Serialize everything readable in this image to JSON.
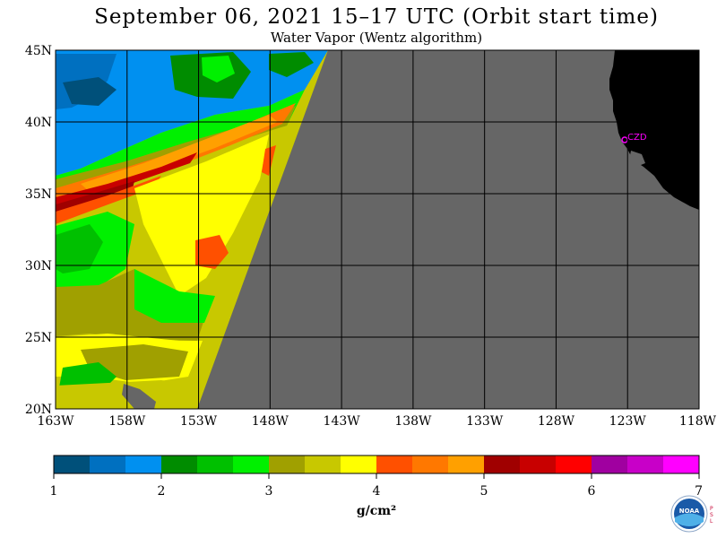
{
  "header": {
    "title": "September 06, 2021  15–17 UTC  (Orbit start time)",
    "subtitle": "Water Vapor (Wentz algorithm)"
  },
  "map": {
    "lat_labels": [
      "45N",
      "40N",
      "35N",
      "30N",
      "25N",
      "20N"
    ],
    "lon_labels": [
      "163W",
      "158W",
      "153W",
      "148W",
      "143W",
      "138W",
      "133W",
      "128W",
      "123W",
      "118W"
    ],
    "station_label": "CZD",
    "colors": {
      "no_data": "#666666",
      "land": "#000000",
      "grid": "#000000",
      "station": "#ff00ff"
    }
  },
  "colorbar": {
    "colors": [
      "#00507a",
      "#0070c0",
      "#0090f0",
      "#008c00",
      "#00c000",
      "#00f000",
      "#a0a000",
      "#c8c800",
      "#ffff00",
      "#ff5000",
      "#ff7800",
      "#ffa000",
      "#a00000",
      "#c80000",
      "#ff0000",
      "#a000a0",
      "#c800c8",
      "#ff00ff"
    ],
    "tick_labels": [
      "1",
      "2",
      "3",
      "4",
      "5",
      "6",
      "7"
    ],
    "unit": "g/cm²"
  },
  "logo": {
    "text": "NOAA",
    "side_text": "PSL"
  }
}
